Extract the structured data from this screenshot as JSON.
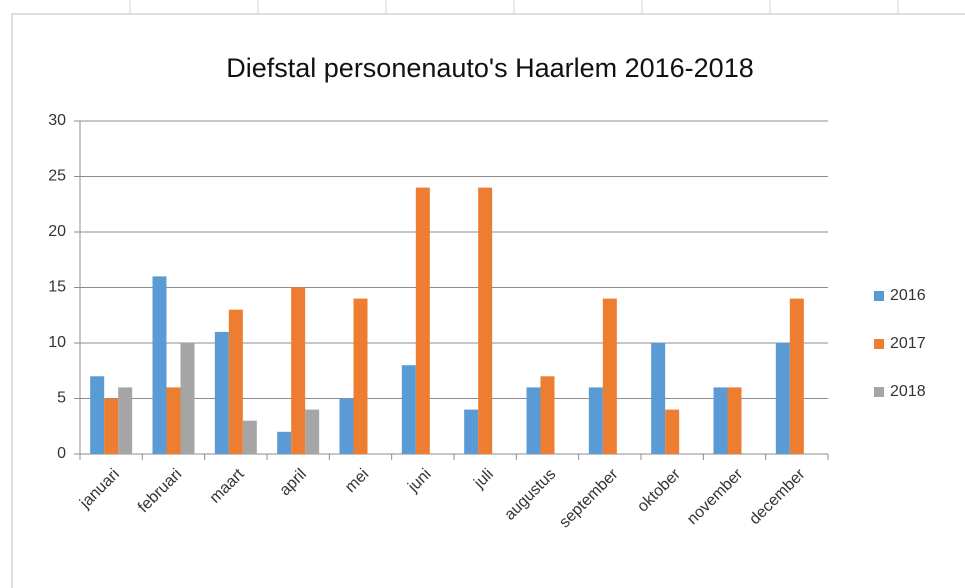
{
  "chart_data": {
    "type": "bar",
    "title": "Diefstal personenauto's Haarlem 2016-2018",
    "categories": [
      "januari",
      "februari",
      "maart",
      "april",
      "mei",
      "juni",
      "juli",
      "augustus",
      "september",
      "oktober",
      "november",
      "december"
    ],
    "series": [
      {
        "name": "2016",
        "color": "#5b9bd5",
        "values": [
          7,
          16,
          11,
          2,
          5,
          8,
          4,
          6,
          6,
          10,
          6,
          10
        ]
      },
      {
        "name": "2017",
        "color": "#ed7d31",
        "values": [
          5,
          6,
          13,
          15,
          14,
          24,
          24,
          7,
          14,
          4,
          6,
          14
        ]
      },
      {
        "name": "2018",
        "color": "#a5a5a5",
        "values": [
          6,
          10,
          3,
          4,
          null,
          null,
          null,
          null,
          null,
          null,
          null,
          null
        ]
      }
    ],
    "ylim": [
      0,
      30
    ],
    "yticks": [
      0,
      5,
      10,
      15,
      20,
      25,
      30
    ],
    "grid": true,
    "legend": "right"
  }
}
